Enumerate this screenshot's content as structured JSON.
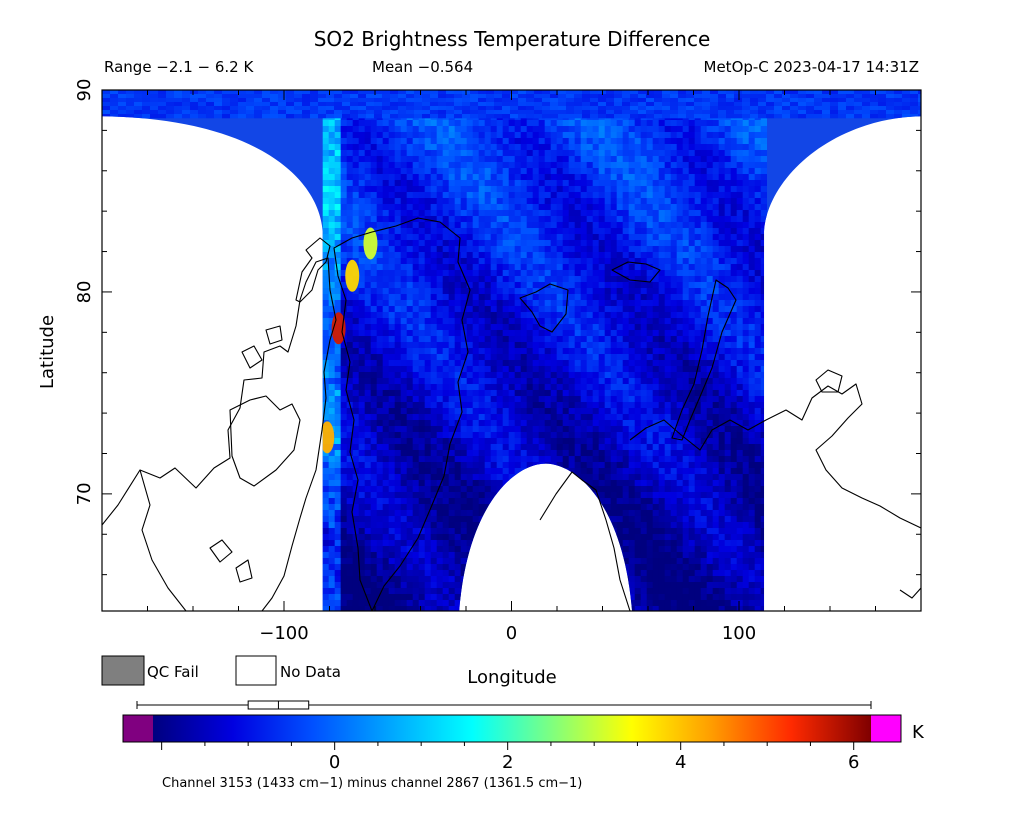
{
  "chart_data": {
    "type": "heatmap",
    "title": "SO2 Brightness Temperature Difference",
    "range_text": "Range −2.1 − 6.2 K",
    "mean_text": "Mean −0.564",
    "satellite_text": "MetOp-C 2023-04-17 14:31Z",
    "xlabel": "Longitude",
    "ylabel": "Latitude",
    "xlim": [
      -180,
      180
    ],
    "ylim": [
      64.2,
      90
    ],
    "x_ticks": [
      -100,
      0,
      100
    ],
    "y_ticks": [
      70,
      80,
      90
    ],
    "x_minor_step": 20,
    "y_minor_step": 2,
    "swath": {
      "left_edge_lon": -83,
      "right_edge_lon": 111,
      "top_lat": 90,
      "bottom_hole_peak_lat": 71.5,
      "bottom_hole_center_lon": 15,
      "bottom_hole_half_width_lon": 38
    },
    "features": [
      {
        "lon": -76,
        "lat": 78.2,
        "value": 5.6
      },
      {
        "lon": -81,
        "lat": 72.8,
        "value": 4.2
      },
      {
        "lon": -70,
        "lat": 80.8,
        "value": 3.8
      },
      {
        "lon": -62,
        "lat": 82.4,
        "value": 3.1
      }
    ],
    "legend": {
      "qc_fail_label": "QC Fail",
      "no_data_label": "No Data",
      "qc_fail_color": "#7f7f7f",
      "no_data_color": "#ffffff"
    },
    "colorbar": {
      "unit": "K",
      "min": -2.1,
      "max": 6.2,
      "ticks": [
        0,
        2,
        4,
        6
      ],
      "under_color": "#800080",
      "over_color": "#ff00ff",
      "stops": [
        "#00007f",
        "#0000e0",
        "#0050ff",
        "#00a8ff",
        "#00ffff",
        "#7fff7f",
        "#ffff00",
        "#ff9d00",
        "#ff2a00",
        "#7f0000"
      ],
      "box_low": -1.0,
      "box_median": -0.65,
      "box_high": -0.3,
      "whisker_low": -2.1,
      "whisker_high": 6.2
    },
    "caption": "Channel 3153 (1433 cm−1) minus channel 2867 (1361.5 cm−1)"
  }
}
